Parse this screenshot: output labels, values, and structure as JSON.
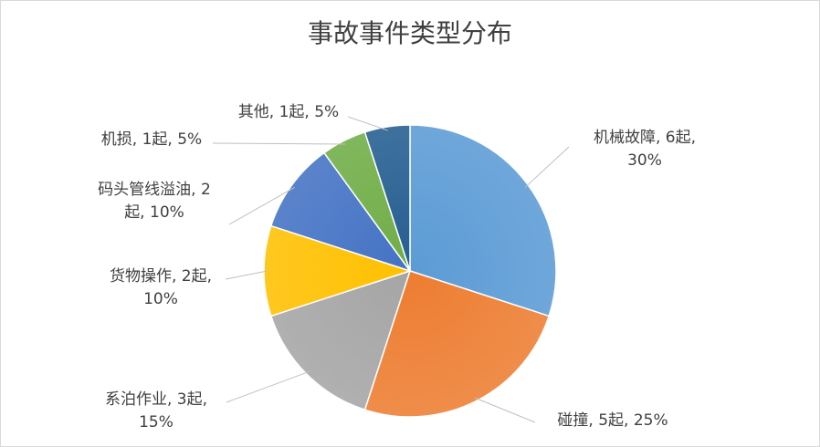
{
  "chart_data": {
    "type": "pie",
    "title": "事故事件类型分布",
    "unit": "起",
    "slices": [
      {
        "name": "机械故障",
        "count": 6,
        "percent": "30%",
        "color": "#5B9BD5"
      },
      {
        "name": "碰撞",
        "count": 5,
        "percent": "25%",
        "color": "#ED7D31"
      },
      {
        "name": "系泊作业",
        "count": 3,
        "percent": "15%",
        "color": "#A5A5A5"
      },
      {
        "name": "货物操作",
        "count": 2,
        "percent": "10%",
        "color": "#FFC000"
      },
      {
        "name": "码头管线溢油",
        "count": 2,
        "percent": "10%",
        "color": "#4472C4"
      },
      {
        "name": "机损",
        "count": 1,
        "percent": "5%",
        "color": "#70AD47"
      },
      {
        "name": "其他",
        "count": 1,
        "percent": "5%",
        "color": "#255E91"
      }
    ],
    "legend": "none",
    "data_labels": "outside with leader lines"
  }
}
